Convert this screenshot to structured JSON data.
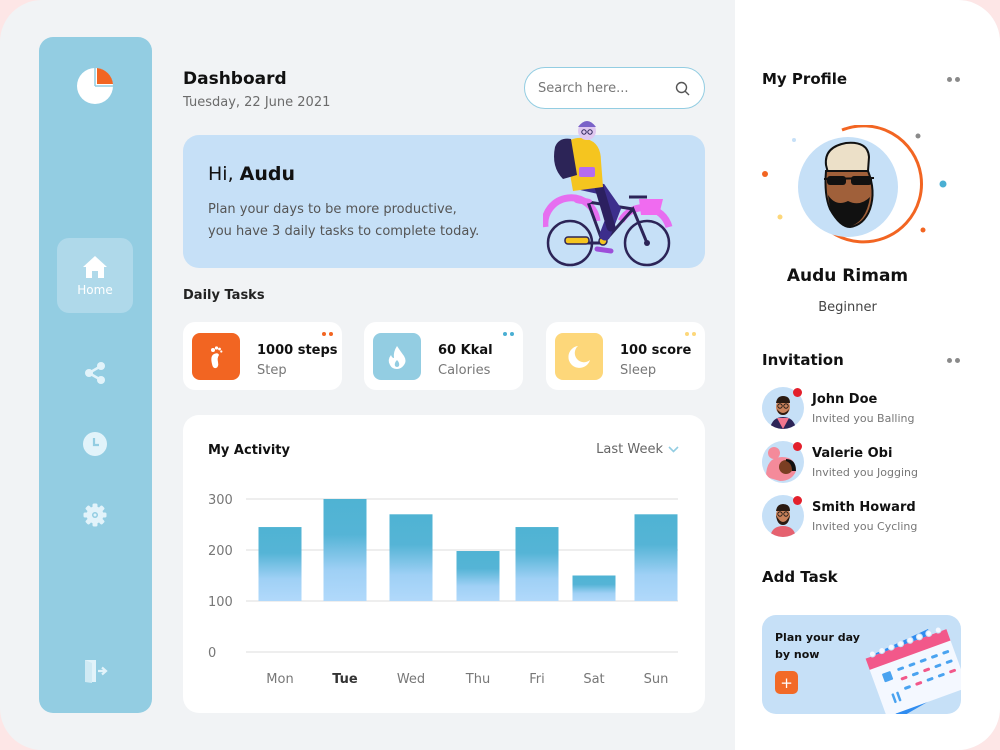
{
  "sidebar": {
    "logo": "pie-chart-logo",
    "items": [
      {
        "label": "Home",
        "icon": "home-icon",
        "active": true
      },
      {
        "label": "",
        "icon": "share-icon"
      },
      {
        "label": "",
        "icon": "clock-icon"
      },
      {
        "label": "",
        "icon": "gear-icon"
      }
    ],
    "logout_icon": "logout-icon"
  },
  "header": {
    "title": "Dashboard",
    "date": "Tuesday, 22 June 2021",
    "search": {
      "placeholder": "Search here...",
      "value": "",
      "icon": "search-icon"
    }
  },
  "hero": {
    "greeting_prefix": "Hi,",
    "name": "Audu",
    "line1": "Plan your days to be more productive,",
    "line2": "you have 3 daily tasks to complete today."
  },
  "daily_tasks": {
    "label": "Daily Tasks",
    "items": [
      {
        "value": "1000 steps",
        "label": "Step",
        "icon": "footprint-icon",
        "color": "#f26522",
        "dot_color": "#f26522"
      },
      {
        "value": "60 Kkal",
        "label": "Calories",
        "icon": "flame-icon",
        "color": "#93cde2",
        "dot_color": "#4aafd3"
      },
      {
        "value": "100 score",
        "label": "Sleep",
        "icon": "moon-icon",
        "color": "#fdd77a",
        "dot_color": "#fdd77a"
      }
    ]
  },
  "activity": {
    "title": "My Activity",
    "period": "Last Week",
    "selected_day": "Tue"
  },
  "chart_data": {
    "type": "bar",
    "title": "My Activity",
    "categories": [
      "Mon",
      "Tue",
      "Wed",
      "Thu",
      "Fri",
      "Sat",
      "Sun"
    ],
    "values": [
      245,
      300,
      270,
      198,
      245,
      150,
      270
    ],
    "baseline": 100,
    "xlabel": "",
    "ylabel": "",
    "yticks": [
      0,
      100,
      200,
      300
    ],
    "ylim": [
      0,
      300
    ],
    "grid": true,
    "legend": null,
    "highlight": "Tue",
    "colors": {
      "top": "#4fb3d3",
      "bottom": "#b1d9fb"
    }
  },
  "profile": {
    "title": "My Profile",
    "name": "Audu Rimam",
    "level": "Beginner"
  },
  "invitation": {
    "title": "Invitation",
    "items": [
      {
        "name": "John Doe",
        "desc": "Invited you Balling"
      },
      {
        "name": "Valerie Obi",
        "desc": "Invited you Jogging"
      },
      {
        "name": "Smith Howard",
        "desc": "Invited you Cycling"
      }
    ]
  },
  "add_task": {
    "title": "Add Task",
    "card_text": "Plan your day by now",
    "button": "+"
  },
  "colors": {
    "sidebar": "#93cde2",
    "accent_orange": "#f26522",
    "hero_bg": "#c6e0f7",
    "page_bg": "#f1f3f5"
  }
}
